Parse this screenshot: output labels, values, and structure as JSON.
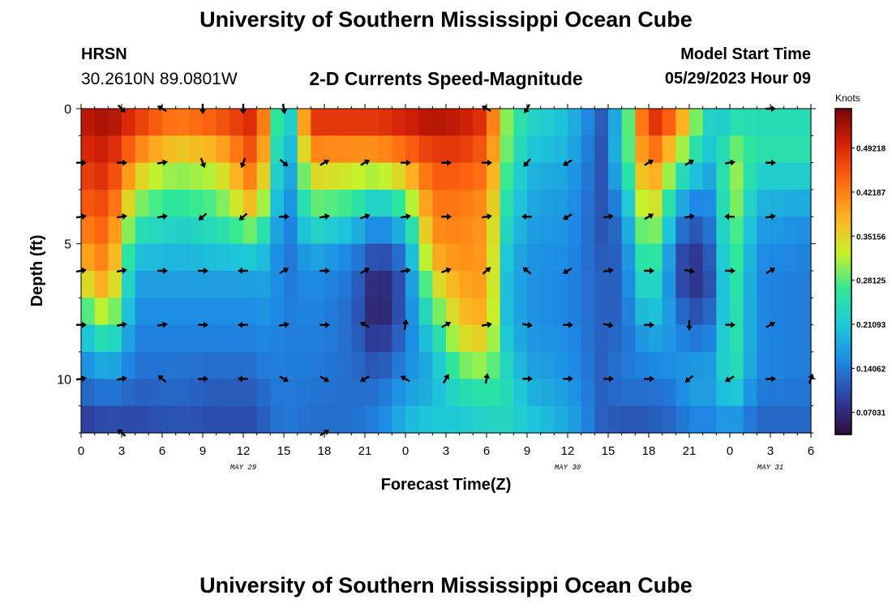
{
  "header": {
    "main_title": "University of Southern Mississippi Ocean Cube",
    "station_code": "HRSN",
    "station_coords": "30.2610N  89.0801W",
    "chart_title": "2-D Currents Speed-Magnitude",
    "model_start_label": "Model Start Time",
    "model_start_value": "05/29/2023 Hour 09"
  },
  "footer": {
    "repeat_title": "University of Southern Mississippi Ocean Cube"
  },
  "chart_data": {
    "type": "heatmap",
    "title": "2-D Currents Speed-Magnitude",
    "xlabel": "Forecast Time(Z)",
    "ylabel": "Depth (ft)",
    "x_range_hours": [
      0,
      54
    ],
    "y_range_ft": [
      0,
      12
    ],
    "x_ticks": [
      {
        "h": 0,
        "label": "0"
      },
      {
        "h": 3,
        "label": "3"
      },
      {
        "h": 6,
        "label": "6"
      },
      {
        "h": 9,
        "label": "9"
      },
      {
        "h": 12,
        "label": "12"
      },
      {
        "h": 15,
        "label": "15"
      },
      {
        "h": 18,
        "label": "18"
      },
      {
        "h": 21,
        "label": "21"
      },
      {
        "h": 24,
        "label": "0"
      },
      {
        "h": 27,
        "label": "3"
      },
      {
        "h": 30,
        "label": "6"
      },
      {
        "h": 33,
        "label": "9"
      },
      {
        "h": 36,
        "label": "12"
      },
      {
        "h": 39,
        "label": "15"
      },
      {
        "h": 42,
        "label": "18"
      },
      {
        "h": 45,
        "label": "21"
      },
      {
        "h": 48,
        "label": "0"
      },
      {
        "h": 51,
        "label": "3"
      },
      {
        "h": 54,
        "label": "6"
      }
    ],
    "date_labels": [
      {
        "h": 12,
        "label": "MAY 29"
      },
      {
        "h": 36,
        "label": "MAY 30"
      },
      {
        "h": 51,
        "label": "MAY 31"
      }
    ],
    "y_ticks": [
      {
        "ft": 0,
        "label": "0"
      },
      {
        "ft": 5,
        "label": "5"
      },
      {
        "ft": 10,
        "label": "10"
      }
    ],
    "depths_ft": [
      0,
      1,
      2,
      3,
      4,
      5,
      6,
      7,
      8,
      9,
      10,
      11,
      12
    ],
    "colorbar": {
      "label": "Knots",
      "vmin": 0.035,
      "vmax": 0.555,
      "ticks": [
        "0.07031",
        "0.14062",
        "0.21093",
        "0.28125",
        "0.35156",
        "0.42187",
        "0.49218"
      ],
      "tick_values": [
        0.07031,
        0.14062,
        0.21093,
        0.28125,
        0.35156,
        0.42187,
        0.49218
      ],
      "colors": [
        "#2c0b3a",
        "#303f9f",
        "#1e88e5",
        "#1ec8d8",
        "#2ee89a",
        "#c6f22a",
        "#ffb020",
        "#ff6a10",
        "#d82308",
        "#7a0303"
      ]
    },
    "speed_profiles_hours": [
      0,
      2,
      4,
      5,
      7,
      10,
      12.5,
      14,
      15,
      17,
      20,
      22,
      24,
      26,
      28,
      30,
      31.5,
      33,
      36,
      38.5,
      40,
      42,
      44,
      45,
      47,
      48,
      50,
      54
    ],
    "speed_profiles_knots": [
      [
        0.52,
        0.5,
        0.48,
        0.46,
        0.44,
        0.4,
        0.36,
        0.3,
        0.22,
        0.16,
        0.14,
        0.1,
        0.08
      ],
      [
        0.54,
        0.52,
        0.5,
        0.48,
        0.46,
        0.44,
        0.42,
        0.38,
        0.3,
        0.22,
        0.16,
        0.12,
        0.09
      ],
      [
        0.5,
        0.46,
        0.4,
        0.34,
        0.28,
        0.22,
        0.18,
        0.16,
        0.15,
        0.14,
        0.13,
        0.11,
        0.09
      ],
      [
        0.48,
        0.44,
        0.36,
        0.3,
        0.26,
        0.22,
        0.18,
        0.16,
        0.15,
        0.14,
        0.13,
        0.11,
        0.1
      ],
      [
        0.45,
        0.4,
        0.32,
        0.28,
        0.24,
        0.2,
        0.18,
        0.16,
        0.15,
        0.14,
        0.13,
        0.12,
        0.1
      ],
      [
        0.48,
        0.42,
        0.34,
        0.3,
        0.26,
        0.22,
        0.18,
        0.16,
        0.15,
        0.14,
        0.12,
        0.11,
        0.1
      ],
      [
        0.5,
        0.48,
        0.44,
        0.4,
        0.34,
        0.24,
        0.18,
        0.16,
        0.15,
        0.14,
        0.12,
        0.11,
        0.1
      ],
      [
        0.4,
        0.38,
        0.34,
        0.3,
        0.26,
        0.2,
        0.18,
        0.17,
        0.16,
        0.15,
        0.14,
        0.13,
        0.12
      ],
      [
        0.14,
        0.13,
        0.12,
        0.12,
        0.12,
        0.12,
        0.13,
        0.14,
        0.14,
        0.14,
        0.14,
        0.14,
        0.14
      ],
      [
        0.5,
        0.46,
        0.38,
        0.32,
        0.26,
        0.2,
        0.16,
        0.15,
        0.15,
        0.14,
        0.14,
        0.13,
        0.13
      ],
      [
        0.5,
        0.46,
        0.36,
        0.3,
        0.24,
        0.16,
        0.14,
        0.13,
        0.13,
        0.13,
        0.13,
        0.13,
        0.13
      ],
      [
        0.5,
        0.46,
        0.36,
        0.26,
        0.16,
        0.12,
        0.07,
        0.04,
        0.06,
        0.09,
        0.12,
        0.14,
        0.15
      ],
      [
        0.52,
        0.48,
        0.4,
        0.32,
        0.24,
        0.16,
        0.12,
        0.12,
        0.13,
        0.14,
        0.16,
        0.18,
        0.2
      ],
      [
        0.54,
        0.5,
        0.46,
        0.44,
        0.42,
        0.4,
        0.36,
        0.3,
        0.24,
        0.2,
        0.18,
        0.2,
        0.22
      ],
      [
        0.52,
        0.5,
        0.46,
        0.44,
        0.42,
        0.42,
        0.4,
        0.38,
        0.36,
        0.32,
        0.26,
        0.22,
        0.2
      ],
      [
        0.5,
        0.46,
        0.44,
        0.42,
        0.4,
        0.4,
        0.4,
        0.4,
        0.38,
        0.34,
        0.28,
        0.24,
        0.22
      ],
      [
        0.3,
        0.3,
        0.28,
        0.26,
        0.24,
        0.22,
        0.2,
        0.2,
        0.2,
        0.22,
        0.24,
        0.24,
        0.22
      ],
      [
        0.24,
        0.22,
        0.2,
        0.18,
        0.18,
        0.16,
        0.16,
        0.16,
        0.16,
        0.17,
        0.18,
        0.2,
        0.22
      ],
      [
        0.2,
        0.2,
        0.18,
        0.17,
        0.16,
        0.16,
        0.15,
        0.15,
        0.15,
        0.16,
        0.16,
        0.18,
        0.18
      ],
      [
        0.12,
        0.11,
        0.11,
        0.11,
        0.11,
        0.11,
        0.12,
        0.12,
        0.12,
        0.12,
        0.12,
        0.12,
        0.12
      ],
      [
        0.2,
        0.22,
        0.22,
        0.18,
        0.14,
        0.12,
        0.12,
        0.12,
        0.12,
        0.13,
        0.14,
        0.12,
        0.1
      ],
      [
        0.52,
        0.48,
        0.44,
        0.4,
        0.36,
        0.32,
        0.28,
        0.24,
        0.2,
        0.16,
        0.14,
        0.12,
        0.11
      ],
      [
        0.46,
        0.4,
        0.3,
        0.24,
        0.18,
        0.14,
        0.12,
        0.14,
        0.16,
        0.16,
        0.15,
        0.13,
        0.12
      ],
      [
        0.36,
        0.3,
        0.24,
        0.18,
        0.12,
        0.08,
        0.06,
        0.08,
        0.12,
        0.15,
        0.18,
        0.16,
        0.14
      ],
      [
        0.18,
        0.2,
        0.18,
        0.16,
        0.15,
        0.14,
        0.12,
        0.12,
        0.14,
        0.16,
        0.18,
        0.16,
        0.14
      ],
      [
        0.22,
        0.28,
        0.32,
        0.34,
        0.32,
        0.3,
        0.3,
        0.28,
        0.28,
        0.28,
        0.26,
        0.2,
        0.16
      ],
      [
        0.22,
        0.26,
        0.24,
        0.2,
        0.18,
        0.16,
        0.15,
        0.15,
        0.15,
        0.15,
        0.15,
        0.13,
        0.12
      ],
      [
        0.22,
        0.26,
        0.24,
        0.2,
        0.16,
        0.15,
        0.14,
        0.14,
        0.14,
        0.14,
        0.14,
        0.13,
        0.12
      ]
    ],
    "arrow_times_hours": [
      0,
      3,
      6,
      9,
      12,
      15,
      18,
      21,
      24,
      27,
      30,
      33,
      36,
      39,
      42,
      45,
      48,
      51,
      54
    ],
    "arrow_depths_ft": [
      0,
      2,
      4,
      6,
      8,
      10,
      12
    ],
    "arrow_directions_deg": [
      [
        null,
        135,
        300,
        180,
        180,
        170,
        null,
        null,
        null,
        null,
        300,
        210,
        null,
        null,
        null,
        null,
        null,
        90,
        null
      ],
      [
        90,
        90,
        80,
        160,
        200,
        130,
        60,
        60,
        90,
        90,
        90,
        220,
        240,
        null,
        60,
        60,
        80,
        90,
        null
      ],
      [
        80,
        80,
        80,
        230,
        230,
        90,
        80,
        70,
        80,
        90,
        80,
        270,
        240,
        80,
        60,
        80,
        270,
        80,
        null
      ],
      [
        80,
        80,
        90,
        90,
        270,
        60,
        90,
        60,
        80,
        70,
        50,
        310,
        240,
        80,
        90,
        100,
        90,
        60,
        null
      ],
      [
        90,
        80,
        80,
        90,
        270,
        80,
        90,
        300,
        10,
        60,
        80,
        100,
        90,
        100,
        90,
        180,
        90,
        60,
        null
      ],
      [
        80,
        80,
        310,
        90,
        270,
        120,
        120,
        240,
        300,
        30,
        10,
        90,
        90,
        90,
        90,
        230,
        240,
        90,
        20
      ],
      [
        null,
        310,
        null,
        null,
        null,
        null,
        60,
        null,
        null,
        null,
        null,
        null,
        null,
        null,
        null,
        null,
        null,
        null,
        null
      ]
    ]
  }
}
